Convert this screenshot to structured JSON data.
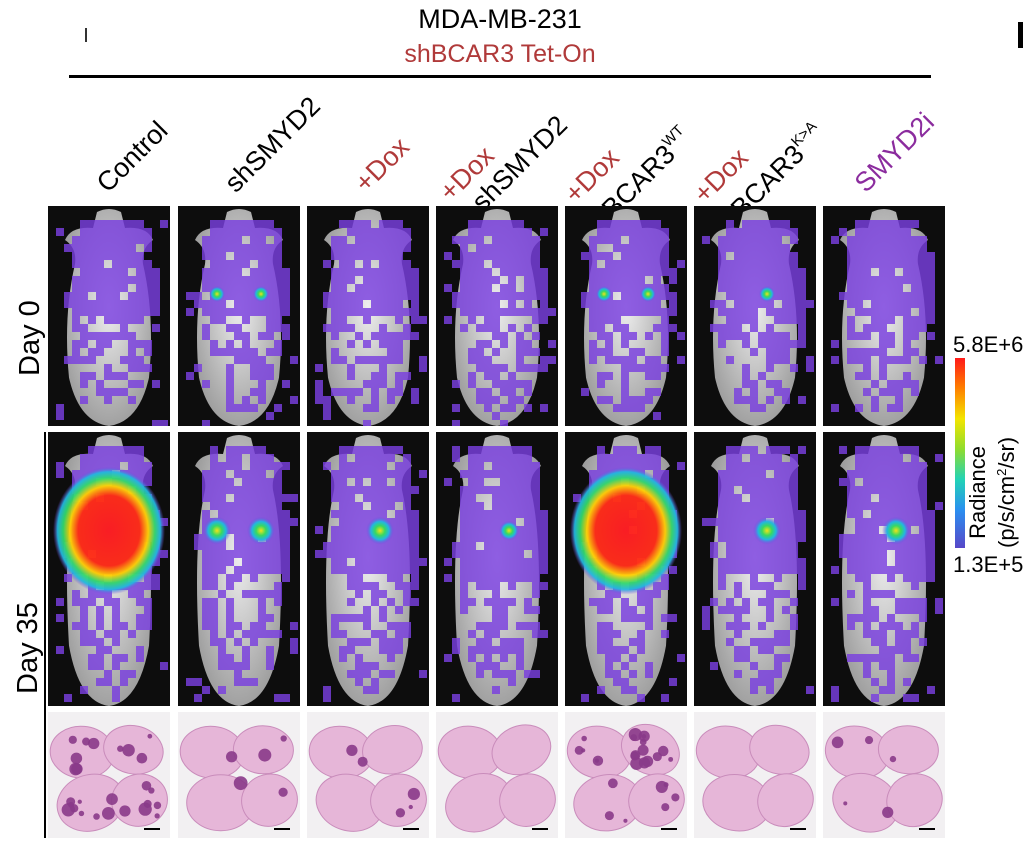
{
  "header": {
    "cell_line": "MDA-MB-231",
    "construct": "shBCAR3 Tet-On",
    "construct_color": "#b03a3a"
  },
  "columns": [
    {
      "line1": "",
      "line2": "Control"
    },
    {
      "line1": "",
      "line2": "shSMYD2"
    },
    {
      "line1": "",
      "line2": "+Dox"
    },
    {
      "line1": "+Dox",
      "line2": "+shSMYD2"
    },
    {
      "line1": "+Dox",
      "line2": "+BCAR3",
      "sup2": "WT"
    },
    {
      "line1": "+Dox",
      "line2": "+BCAR3",
      "sup2": "K>A"
    },
    {
      "line1": "",
      "line2": "SMYD2i"
    }
  ],
  "rows": {
    "day0": "Day 0",
    "day35": "Day 35"
  },
  "legend": {
    "max": "5.8E+6",
    "min": "1.3E+5",
    "title": "Radiance",
    "unit_a": "(p/s/cm",
    "unit_sup": "2",
    "unit_b": "/sr)"
  },
  "colors": {
    "dox_red": "#b03a3a",
    "inhibitor_purple": "#8b2c9e",
    "overlay_purple": "#7a3fe0",
    "hot_red": "#ff2020",
    "tissue_pink": "#e8b8d8",
    "metastasis_purple": "#8a3a8a"
  },
  "images": [
    {
      "row": "day0",
      "signal": "low",
      "hotspots": 0
    },
    {
      "row": "day0",
      "signal": "low",
      "hotspots": 2
    },
    {
      "row": "day0",
      "signal": "low",
      "hotspots": 0
    },
    {
      "row": "day0",
      "signal": "low",
      "hotspots": 0
    },
    {
      "row": "day0",
      "signal": "low",
      "hotspots": 2
    },
    {
      "row": "day0",
      "signal": "low",
      "hotspots": 1
    },
    {
      "row": "day0",
      "signal": "low",
      "hotspots": 0
    },
    {
      "row": "day35",
      "signal": "very-high",
      "hotspots": 1
    },
    {
      "row": "day35",
      "signal": "moderate",
      "hotspots": 2
    },
    {
      "row": "day35",
      "signal": "moderate",
      "hotspots": 1
    },
    {
      "row": "day35",
      "signal": "low",
      "hotspots": 1
    },
    {
      "row": "day35",
      "signal": "very-high",
      "hotspots": 1
    },
    {
      "row": "day35",
      "signal": "moderate",
      "hotspots": 1
    },
    {
      "row": "day35",
      "signal": "moderate",
      "hotspots": 1
    }
  ],
  "histology": [
    {
      "metastases": "many"
    },
    {
      "metastases": "few"
    },
    {
      "metastases": "few"
    },
    {
      "metastases": "none"
    },
    {
      "metastases": "many"
    },
    {
      "metastases": "none"
    },
    {
      "metastases": "few"
    }
  ]
}
